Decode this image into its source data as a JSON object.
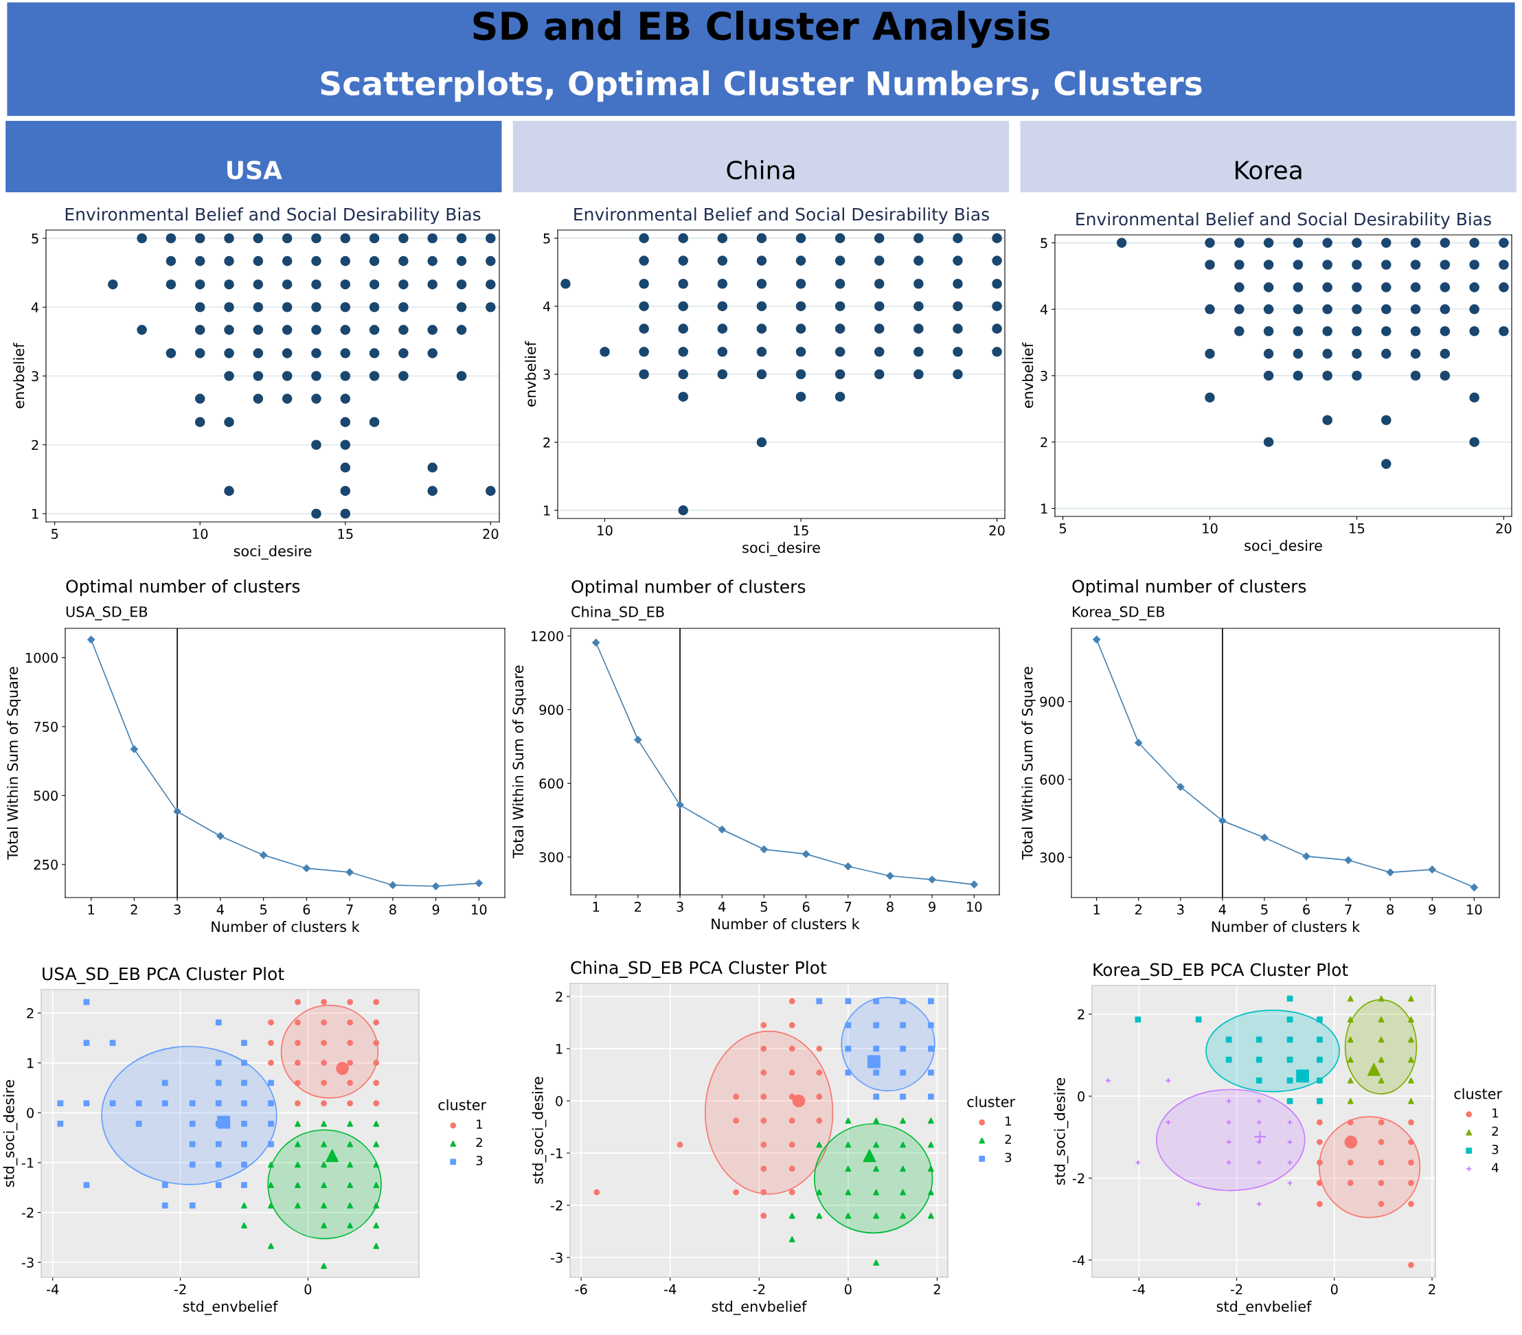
{
  "chart_data": [
    {
      "type": "other",
      "title": "SD and EB Cluster Analysis",
      "subtitle": "Scatterplots, Optimal Cluster Numbers, Clusters",
      "annotations": [
        "USA",
        "China",
        "Korea"
      ]
    },
    {
      "type": "scatter",
      "title": "Environmental Belief and Social Desirability Bias",
      "xlabel": "soci_desire",
      "ylabel": "envbelief",
      "color": "#1a476f",
      "marker": "circle",
      "grid": "y",
      "x": [
        8,
        9,
        10,
        11,
        12,
        13,
        14,
        15,
        16,
        17,
        18,
        19,
        20,
        9,
        10,
        11,
        12,
        13,
        14,
        15,
        16,
        17,
        18,
        19,
        20,
        7,
        9,
        10,
        11,
        12,
        13,
        14,
        15,
        16,
        17,
        18,
        19,
        20,
        10,
        11,
        12,
        13,
        14,
        15,
        16,
        17,
        19,
        20,
        8,
        10,
        11,
        12,
        13,
        14,
        15,
        16,
        17,
        18,
        19,
        9,
        10,
        11,
        12,
        13,
        14,
        15,
        16,
        17,
        18,
        11,
        12,
        13,
        14,
        15,
        16,
        17,
        19,
        10,
        12,
        13,
        14,
        15,
        10,
        11,
        15,
        16,
        14,
        15,
        15,
        18,
        11,
        15,
        18,
        20,
        14,
        15
      ],
      "values": [
        5,
        5,
        5,
        5,
        5,
        5,
        5,
        5,
        5,
        5,
        5,
        5,
        5,
        4.67,
        4.67,
        4.67,
        4.67,
        4.67,
        4.67,
        4.67,
        4.67,
        4.67,
        4.67,
        4.67,
        4.67,
        4.33,
        4.33,
        4.33,
        4.33,
        4.33,
        4.33,
        4.33,
        4.33,
        4.33,
        4.33,
        4.33,
        4.33,
        4.33,
        4,
        4,
        4,
        4,
        4,
        4,
        4,
        4,
        4,
        4,
        3.67,
        3.67,
        3.67,
        3.67,
        3.67,
        3.67,
        3.67,
        3.67,
        3.67,
        3.67,
        3.67,
        3.33,
        3.33,
        3.33,
        3.33,
        3.33,
        3.33,
        3.33,
        3.33,
        3.33,
        3.33,
        3,
        3,
        3,
        3,
        3,
        3,
        3,
        3,
        2.67,
        2.67,
        2.67,
        2.67,
        2.67,
        2.33,
        2.33,
        2.33,
        2.33,
        2,
        2,
        1.67,
        1.67,
        1.33,
        1.33,
        1.33,
        1.33,
        1,
        1
      ],
      "xlim": [
        4.7,
        20.3
      ],
      "xticks": [
        5,
        10,
        15,
        20
      ],
      "ylim": [
        0.88,
        5.12
      ],
      "yticks": [
        1,
        2,
        3,
        4,
        5
      ]
    },
    {
      "type": "scatter",
      "title": "Environmental Belief and Social Desirability Bias",
      "xlabel": "soci_desire",
      "ylabel": "envbelief",
      "color": "#1a476f",
      "marker": "circle",
      "grid": "y",
      "x": [
        11,
        12,
        13,
        14,
        15,
        16,
        17,
        18,
        19,
        20,
        11,
        12,
        13,
        14,
        15,
        16,
        17,
        18,
        19,
        20,
        9,
        11,
        12,
        13,
        14,
        15,
        16,
        17,
        18,
        19,
        20,
        11,
        12,
        13,
        14,
        15,
        16,
        17,
        18,
        19,
        20,
        11,
        12,
        13,
        14,
        15,
        16,
        17,
        18,
        19,
        20,
        10,
        11,
        12,
        13,
        14,
        15,
        16,
        17,
        18,
        19,
        20,
        11,
        12,
        13,
        14,
        15,
        16,
        17,
        18,
        19,
        12,
        15,
        16,
        14,
        12
      ],
      "values": [
        5,
        5,
        5,
        5,
        5,
        5,
        5,
        5,
        5,
        5,
        4.67,
        4.67,
        4.67,
        4.67,
        4.67,
        4.67,
        4.67,
        4.67,
        4.67,
        4.67,
        4.33,
        4.33,
        4.33,
        4.33,
        4.33,
        4.33,
        4.33,
        4.33,
        4.33,
        4.33,
        4.33,
        4,
        4,
        4,
        4,
        4,
        4,
        4,
        4,
        4,
        4,
        3.67,
        3.67,
        3.67,
        3.67,
        3.67,
        3.67,
        3.67,
        3.67,
        3.67,
        3.67,
        3.33,
        3.33,
        3.33,
        3.33,
        3.33,
        3.33,
        3.33,
        3.33,
        3.33,
        3.33,
        3.33,
        3,
        3,
        3,
        3,
        3,
        3,
        3,
        3,
        3,
        2.67,
        2.67,
        2.67,
        2,
        1
      ],
      "xlim": [
        8.8,
        20.2
      ],
      "xticks": [
        10,
        15,
        20
      ],
      "ylim": [
        0.88,
        5.12
      ],
      "yticks": [
        1,
        2,
        3,
        4,
        5
      ]
    },
    {
      "type": "scatter",
      "title": "Environmental Belief and Social Desirability Bias",
      "xlabel": "soci_desire",
      "ylabel": "envbelief",
      "color": "#1a476f",
      "marker": "circle",
      "grid": "y",
      "x": [
        7,
        10,
        11,
        12,
        13,
        14,
        15,
        16,
        17,
        18,
        19,
        20,
        10,
        11,
        12,
        13,
        14,
        15,
        16,
        17,
        18,
        19,
        20,
        11,
        12,
        13,
        14,
        15,
        16,
        17,
        18,
        19,
        20,
        10,
        11,
        12,
        13,
        14,
        15,
        16,
        17,
        18,
        19,
        11,
        12,
        13,
        14,
        15,
        16,
        17,
        18,
        19,
        20,
        10,
        12,
        13,
        14,
        15,
        16,
        17,
        18,
        12,
        13,
        14,
        15,
        17,
        18,
        10,
        19,
        14,
        16,
        12,
        19,
        16
      ],
      "values": [
        5,
        5,
        5,
        5,
        5,
        5,
        5,
        5,
        5,
        5,
        5,
        5,
        4.67,
        4.67,
        4.67,
        4.67,
        4.67,
        4.67,
        4.67,
        4.67,
        4.67,
        4.67,
        4.67,
        4.33,
        4.33,
        4.33,
        4.33,
        4.33,
        4.33,
        4.33,
        4.33,
        4.33,
        4.33,
        4,
        4,
        4,
        4,
        4,
        4,
        4,
        4,
        4,
        4,
        3.67,
        3.67,
        3.67,
        3.67,
        3.67,
        3.67,
        3.67,
        3.67,
        3.67,
        3.67,
        3.33,
        3.33,
        3.33,
        3.33,
        3.33,
        3.33,
        3.33,
        3.33,
        3,
        3,
        3,
        3,
        3,
        3,
        2.67,
        2.67,
        2.33,
        2.33,
        2,
        2,
        1.67
      ],
      "xlim": [
        4.73,
        20.27
      ],
      "xticks": [
        5,
        10,
        15,
        20
      ],
      "ylim": [
        0.88,
        5.12
      ],
      "yticks": [
        1,
        2,
        3,
        4,
        5
      ]
    },
    {
      "type": "line",
      "title": "Optimal number of clusters",
      "subtitle": "USA_SD_EB",
      "xlabel": "Number of clusters k",
      "ylabel": "Total Within Sum of Square",
      "marker": "diamond",
      "color": "#4682b4",
      "x": [
        1,
        2,
        3,
        4,
        5,
        6,
        7,
        8,
        9,
        10
      ],
      "values": [
        1065,
        668,
        442,
        353,
        284,
        236,
        222,
        175,
        171,
        182
      ],
      "xlim": [
        0.4,
        10.6
      ],
      "xticks": [
        1,
        2,
        3,
        4,
        5,
        6,
        7,
        8,
        9,
        10
      ],
      "ylim": [
        130,
        1106
      ],
      "yticks": [
        250,
        500,
        750,
        1000
      ],
      "ref_lines": [
        {
          "axis": "x",
          "value": 3
        }
      ]
    },
    {
      "type": "line",
      "title": "Optimal number of clusters",
      "subtitle": "China_SD_EB",
      "xlabel": "Number of clusters k",
      "ylabel": "Total Within Sum of Square",
      "marker": "diamond",
      "color": "#4682b4",
      "x": [
        1,
        2,
        3,
        4,
        5,
        6,
        7,
        8,
        9,
        10
      ],
      "values": [
        1173,
        777,
        512,
        412,
        331,
        312,
        262,
        223,
        208,
        188
      ],
      "xlim": [
        0.4,
        10.6
      ],
      "xticks": [
        1,
        2,
        3,
        4,
        5,
        6,
        7,
        8,
        9,
        10
      ],
      "ylim": [
        146,
        1231
      ],
      "yticks": [
        300,
        600,
        900,
        1200
      ],
      "ref_lines": [
        {
          "axis": "x",
          "value": 3
        }
      ]
    },
    {
      "type": "line",
      "title": "Optimal number of clusters",
      "subtitle": "Korea_SD_EB",
      "xlabel": "Number of clusters k",
      "ylabel": "Total Within Sum of Square",
      "marker": "diamond",
      "color": "#4682b4",
      "x": [
        1,
        2,
        3,
        4,
        5,
        6,
        7,
        8,
        9,
        10
      ],
      "values": [
        1139,
        741,
        571,
        441,
        376,
        304,
        289,
        242,
        253,
        184
      ],
      "xlim": [
        0.4,
        10.6
      ],
      "xticks": [
        1,
        2,
        3,
        4,
        5,
        6,
        7,
        8,
        9,
        10
      ],
      "ylim": [
        145,
        1182
      ],
      "yticks": [
        300,
        600,
        900
      ],
      "ref_lines": [
        {
          "axis": "x",
          "value": 4
        }
      ]
    },
    {
      "type": "scatter",
      "title": "USA_SD_EB PCA Cluster Plot",
      "xlabel": "std_envbelief",
      "ylabel": "std_soci_desire",
      "legend_title": "cluster",
      "legend": "right",
      "grid": true,
      "series": [
        {
          "name": "1",
          "color": "#f8766d",
          "marker": "circle",
          "x": [
            -0.16,
            0.25,
            0.66,
            1.07,
            -0.58,
            -0.16,
            0.25,
            0.66,
            1.07,
            -0.58,
            -0.16,
            0.25,
            0.66,
            1.07,
            -0.58,
            -0.16,
            0.25,
            0.66,
            1.07,
            -0.16,
            0.25,
            0.66,
            1.07,
            -0.16,
            0.25,
            0.66,
            1.07
          ],
          "values": [
            2.22,
            2.22,
            2.22,
            2.22,
            1.81,
            1.81,
            1.81,
            1.81,
            1.81,
            1.4,
            1.4,
            1.4,
            1.4,
            1.4,
            1.0,
            1.0,
            1.0,
            1.0,
            1.0,
            0.6,
            0.6,
            0.6,
            0.6,
            0.19,
            0.19,
            0.19,
            0.19
          ]
        },
        {
          "name": "2",
          "color": "#00ba38",
          "marker": "triangle",
          "x": [
            -0.16,
            0.25,
            0.66,
            1.07,
            -0.16,
            0.25,
            0.66,
            1.07,
            -0.58,
            -0.16,
            0.25,
            0.66,
            1.07,
            -0.58,
            -0.16,
            0.25,
            0.66,
            1.07,
            -1.0,
            -0.58,
            -0.16,
            0.25,
            0.66,
            1.07,
            -1.0,
            0.25,
            0.66,
            1.07,
            -0.58,
            1.07,
            0.25
          ],
          "values": [
            -0.22,
            -0.22,
            -0.22,
            -0.22,
            -0.63,
            -0.63,
            -0.63,
            -0.63,
            -1.04,
            -1.04,
            -1.04,
            -1.04,
            -1.04,
            -1.45,
            -1.45,
            -1.45,
            -1.45,
            -1.45,
            -1.86,
            -1.86,
            -1.86,
            -1.86,
            -1.86,
            -1.86,
            -2.26,
            -2.26,
            -2.26,
            -2.26,
            -2.67,
            -2.67,
            -3.07
          ]
        },
        {
          "name": "3",
          "color": "#619cff",
          "marker": "square",
          "x": [
            -3.47,
            -1.4,
            -3.47,
            -3.06,
            -1.0,
            -1.4,
            -1.0,
            -2.24,
            -1.4,
            -1.0,
            -0.58,
            -3.88,
            -3.47,
            -3.06,
            -2.65,
            -2.24,
            -1.81,
            -1.4,
            -1.0,
            -0.58,
            -3.88,
            -2.65,
            -1.81,
            -1.4,
            -1.0,
            -0.58,
            -1.81,
            -1.4,
            -1.0,
            -0.58,
            -1.81,
            -1.4,
            -1.0,
            -3.47,
            -2.24,
            -1.4,
            -1.0,
            -2.24,
            -1.81
          ],
          "values": [
            2.22,
            1.81,
            1.4,
            1.4,
            1.4,
            1.0,
            1.0,
            0.6,
            0.6,
            0.6,
            0.6,
            0.19,
            0.19,
            0.19,
            0.19,
            0.19,
            0.19,
            0.19,
            0.19,
            0.19,
            -0.22,
            -0.22,
            -0.22,
            -0.22,
            -0.22,
            -0.22,
            -0.63,
            -0.63,
            -0.63,
            -0.63,
            -1.04,
            -1.04,
            -1.04,
            -1.45,
            -1.45,
            -1.45,
            -1.45,
            -1.86,
            -1.86
          ]
        },
        {
          "color": "#f8766d",
          "marker": "circle",
          "x": [
            0.54
          ],
          "values": [
            0.89
          ]
        },
        {
          "color": "#00ba38",
          "marker": "triangle",
          "x": [
            0.38
          ],
          "values": [
            -0.86
          ]
        },
        {
          "color": "#619cff",
          "marker": "square",
          "x": [
            -1.32
          ],
          "values": [
            -0.19
          ]
        }
      ],
      "xlim": [
        -4.18,
        1.74
      ],
      "xticks": [
        -4,
        -2,
        0
      ],
      "ylim": [
        -3.3,
        2.47
      ],
      "yticks": [
        -3,
        -2,
        -1,
        0,
        1,
        2
      ]
    },
    {
      "type": "scatter",
      "title": "China_SD_EB PCA Cluster Plot",
      "xlabel": "std_envbelief",
      "ylabel": "std_soci_desire",
      "legend_title": "cluster",
      "legend": "right",
      "grid": true,
      "series": [
        {
          "name": "1",
          "color": "#f8766d",
          "marker": "circle",
          "x": [
            -1.26,
            -1.9,
            -1.26,
            -1.9,
            -1.26,
            -0.65,
            -1.9,
            -1.26,
            -0.65,
            -2.52,
            -1.9,
            -1.26,
            -0.65,
            -2.52,
            -1.9,
            -1.26,
            -0.65,
            -3.78,
            -1.9,
            -1.26,
            -1.9,
            -1.26,
            -5.65,
            -2.52,
            -1.9,
            -1.26,
            -1.9
          ],
          "values": [
            1.91,
            1.45,
            1.45,
            1.0,
            1.0,
            1.0,
            0.54,
            0.54,
            0.54,
            0.08,
            0.08,
            0.08,
            0.08,
            -0.38,
            -0.38,
            -0.38,
            -0.38,
            -0.84,
            -0.84,
            -0.84,
            -1.3,
            -1.3,
            -1.75,
            -1.75,
            -1.75,
            -1.75,
            -2.2
          ]
        },
        {
          "name": "2",
          "color": "#00ba38",
          "marker": "triangle",
          "x": [
            0,
            0.63,
            1.23,
            1.86,
            -0.65,
            0,
            0.63,
            1.23,
            1.86,
            0,
            0.63,
            1.23,
            1.86,
            -0.65,
            0,
            0.63,
            1.23,
            1.86,
            -1.26,
            -0.65,
            0,
            0.63,
            1.23,
            1.86,
            -1.26,
            0.63
          ],
          "values": [
            -0.38,
            -0.38,
            -0.38,
            -0.38,
            -0.84,
            -0.84,
            -0.84,
            -0.84,
            -0.84,
            -1.3,
            -1.3,
            -1.3,
            -1.3,
            -1.75,
            -1.75,
            -1.75,
            -1.75,
            -1.75,
            -2.2,
            -2.2,
            -2.2,
            -2.2,
            -2.2,
            -2.2,
            -2.65,
            -3.1
          ]
        },
        {
          "name": "3",
          "color": "#619cff",
          "marker": "square",
          "x": [
            -0.65,
            0,
            0.63,
            1.23,
            1.86,
            0,
            0.63,
            1.23,
            1.86,
            0,
            0.63,
            1.23,
            1.86,
            0,
            0.63,
            1.23,
            1.86,
            0.63,
            1.23,
            1.86
          ],
          "values": [
            1.91,
            1.91,
            1.91,
            1.91,
            1.91,
            1.45,
            1.45,
            1.45,
            1.45,
            1.0,
            1.0,
            1.0,
            1.0,
            0.54,
            0.54,
            0.54,
            0.54,
            0.08,
            0.08,
            0.08
          ]
        },
        {
          "color": "#f8766d",
          "marker": "circle",
          "x": [
            -1.11
          ],
          "values": [
            0.0
          ]
        },
        {
          "color": "#00ba38",
          "marker": "triangle",
          "x": [
            0.48
          ],
          "values": [
            -1.05
          ]
        },
        {
          "color": "#619cff",
          "marker": "square",
          "x": [
            0.58
          ],
          "values": [
            0.75
          ]
        }
      ],
      "xlim": [
        -6.25,
        2.24
      ],
      "xticks": [
        -6,
        -4,
        -2,
        0,
        2
      ],
      "ylim": [
        -3.38,
        2.25
      ],
      "yticks": [
        -3,
        -2,
        -1,
        0,
        1,
        2
      ]
    },
    {
      "type": "scatter",
      "title": "Korea_SD_EB PCA Cluster Plot",
      "xlabel": "std_envbelief",
      "ylabel": "std_soci_desire",
      "legend_title": "cluster",
      "legend": "right",
      "grid": true,
      "series": [
        {
          "name": "1",
          "color": "#f8766d",
          "marker": "circle",
          "x": [
            -0.3,
            0.33,
            0.96,
            1.57,
            -0.3,
            0.96,
            1.57,
            -0.3,
            0.33,
            0.96,
            1.57,
            -0.3,
            0.33,
            0.96,
            1.57,
            -0.3,
            0.96,
            1.57,
            1.57
          ],
          "values": [
            -0.64,
            -0.64,
            -0.64,
            -0.64,
            -1.12,
            -1.12,
            -1.12,
            -1.62,
            -1.62,
            -1.62,
            -1.62,
            -2.12,
            -2.12,
            -2.12,
            -2.12,
            -2.63,
            -2.63,
            -2.63,
            -4.12
          ]
        },
        {
          "name": "2",
          "color": "#7cae00",
          "marker": "triangle",
          "x": [
            0.33,
            0.96,
            1.57,
            0.33,
            0.96,
            1.57,
            0.33,
            0.96,
            1.57,
            0.33,
            0.96,
            1.57,
            0.33,
            0.96,
            1.57,
            0.33,
            1.57
          ],
          "values": [
            2.38,
            2.38,
            2.38,
            1.87,
            1.87,
            1.87,
            1.38,
            1.38,
            1.38,
            0.89,
            0.89,
            0.89,
            0.38,
            0.38,
            0.38,
            -0.12,
            -0.12
          ]
        },
        {
          "name": "3",
          "color": "#00bfc4",
          "marker": "square",
          "x": [
            -0.91,
            -4.02,
            -2.78,
            -0.91,
            -0.3,
            -2.16,
            -1.54,
            -0.91,
            -0.3,
            -2.16,
            -1.54,
            -0.91,
            -0.3,
            -1.54,
            -0.91,
            -0.3,
            -0.91,
            -0.3
          ],
          "values": [
            2.38,
            1.87,
            1.87,
            1.87,
            1.87,
            1.38,
            1.38,
            1.38,
            1.38,
            0.89,
            0.89,
            0.89,
            0.89,
            0.38,
            0.38,
            0.38,
            -0.12,
            -0.12
          ]
        },
        {
          "name": "4",
          "color": "#c77cff",
          "marker": "cross",
          "x": [
            -4.63,
            -3.4,
            -2.16,
            -1.54,
            -3.4,
            -2.16,
            -1.54,
            -0.91,
            -2.16,
            -1.54,
            -0.91,
            -4.02,
            -2.16,
            -1.54,
            -0.91,
            -0.91,
            -2.78,
            -1.54
          ],
          "values": [
            0.38,
            0.38,
            -0.12,
            -0.12,
            -0.64,
            -0.64,
            -0.64,
            -0.64,
            -1.12,
            -1.12,
            -1.12,
            -1.62,
            -1.62,
            -1.62,
            -1.62,
            -2.12,
            -2.63,
            -2.63
          ]
        },
        {
          "color": "#f8766d",
          "marker": "circle",
          "x": [
            0.34
          ],
          "values": [
            -1.12
          ]
        },
        {
          "color": "#7cae00",
          "marker": "triangle",
          "x": [
            0.81
          ],
          "values": [
            0.65
          ]
        },
        {
          "color": "#00bfc4",
          "marker": "square",
          "x": [
            -0.65
          ],
          "values": [
            0.49
          ]
        },
        {
          "color": "#c77cff",
          "marker": "cross",
          "x": [
            -1.52
          ],
          "values": [
            -0.99
          ]
        }
      ],
      "xlim": [
        -4.96,
        2.07
      ],
      "xticks": [
        -4,
        -2,
        0,
        2
      ],
      "ylim": [
        -4.42,
        2.7
      ],
      "yticks": [
        -4,
        -2,
        0,
        2
      ]
    }
  ]
}
